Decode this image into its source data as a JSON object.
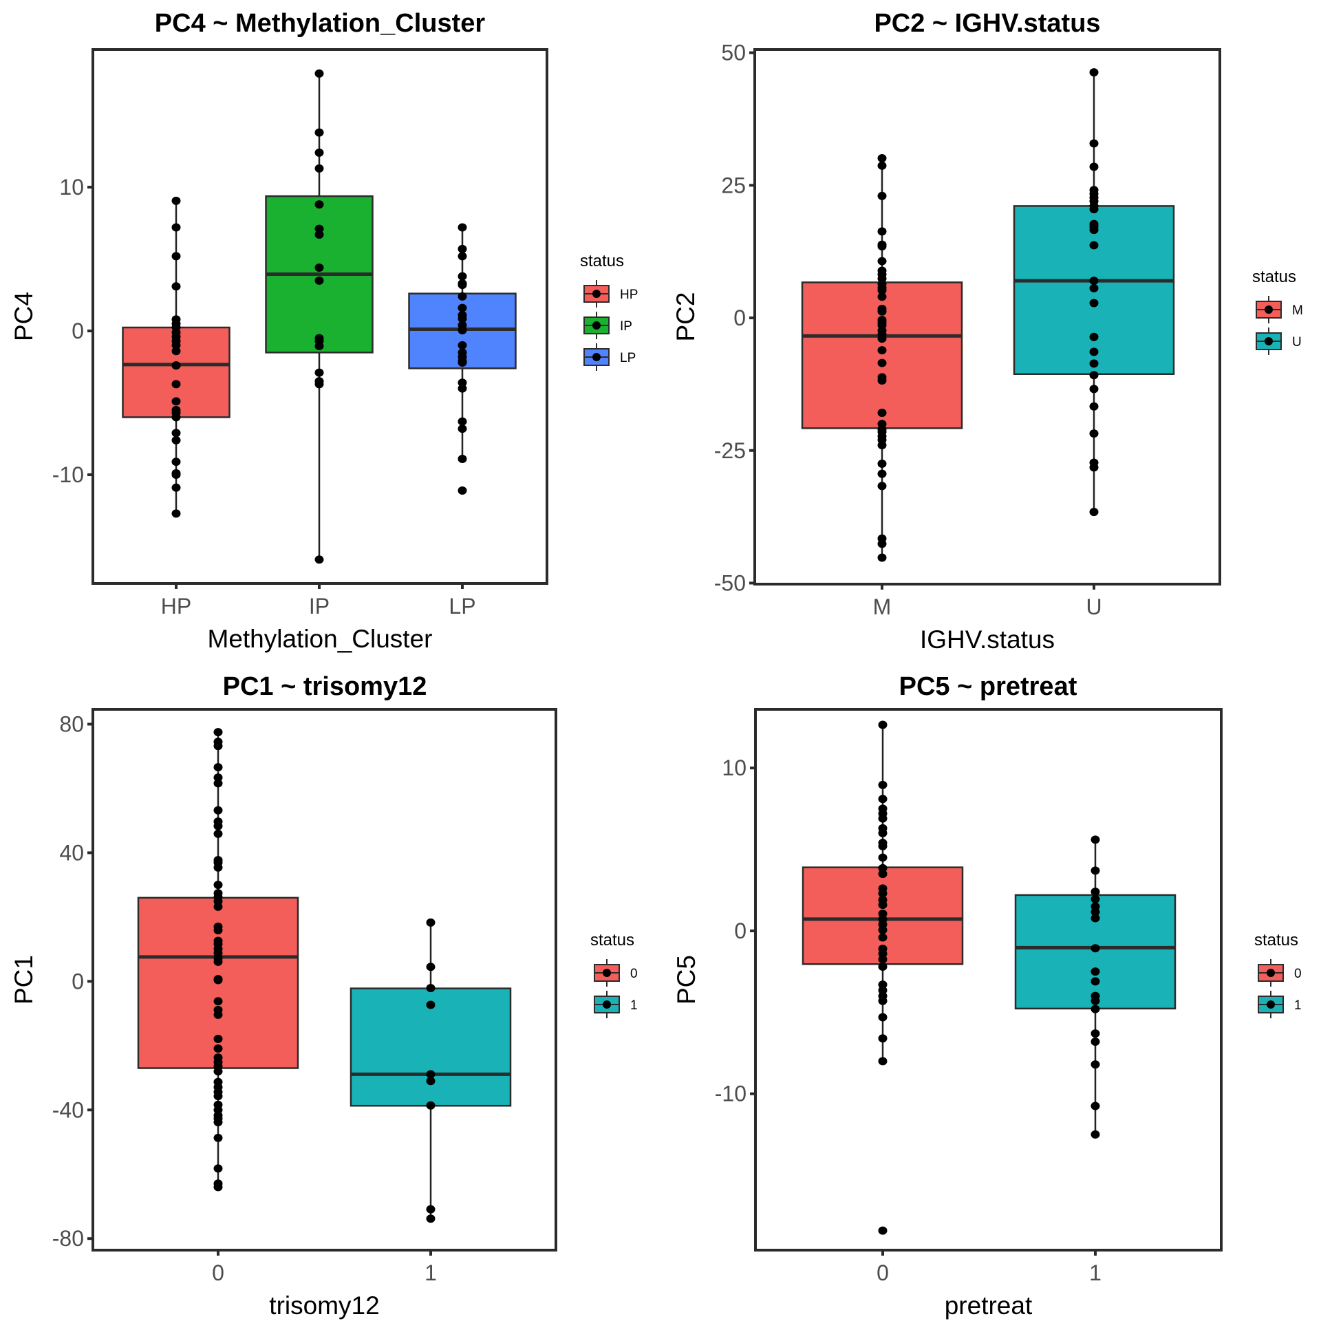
{
  "chart_data": [
    {
      "type": "box",
      "title": "PC4 ~ Methylation_Cluster",
      "xlabel": "Methylation_Cluster",
      "ylabel": "PC4",
      "ylim": [
        -17.56,
        19.57
      ],
      "yticks": [
        -10,
        0,
        10
      ],
      "ytick_labels": [
        "-10",
        "0",
        "10"
      ],
      "categories": [
        "HP",
        "IP",
        "LP"
      ],
      "legend": {
        "title": "status",
        "position": "right",
        "entries": [
          "HP",
          "IP",
          "LP"
        ]
      },
      "grid": false,
      "groups": [
        {
          "name": "HP",
          "color": "#F35E5A",
          "q1": -6.0,
          "median": -2.34,
          "q3": 0.24,
          "whisker_low": -12.7,
          "whisker_high": 9.05,
          "points": [
            9.05,
            7.2,
            5.2,
            3.1,
            0.8,
            0.5,
            0.25,
            -0.1,
            -0.4,
            -0.7,
            -1.0,
            -1.4,
            -2.4,
            -2.4,
            -3.7,
            -4.9,
            -5.5,
            -5.7,
            -6.0,
            -7.1,
            -7.6,
            -9.1,
            -9.9,
            -10.0,
            -10.9,
            -12.7
          ]
        },
        {
          "name": "IP",
          "color": "#19B12F",
          "q1": -1.5,
          "median": 3.95,
          "q3": 9.37,
          "whisker_low": -15.9,
          "whisker_high": 17.9,
          "points": [
            17.9,
            13.8,
            12.4,
            11.3,
            8.8,
            7.1,
            6.7,
            4.4,
            3.5,
            -0.5,
            -0.7,
            -1.05,
            -2.9,
            -3.5,
            -3.7,
            -15.9
          ]
        },
        {
          "name": "LP",
          "color": "#5083FE",
          "q1": -2.6,
          "median": 0.12,
          "q3": 2.6,
          "whisker_low": -8.9,
          "whisker_high": 7.2,
          "points": [
            7.2,
            5.7,
            5.2,
            3.8,
            3.3,
            3.2,
            2.4,
            1.6,
            1.1,
            0.85,
            0.4,
            0.05,
            -1.0,
            -1.5,
            -1.8,
            -2.1,
            -2.2,
            -3.6,
            -4.0,
            -6.3,
            -6.8,
            -8.9,
            -11.1
          ]
        }
      ]
    },
    {
      "type": "box",
      "title": "PC2 ~ IGHV.status",
      "xlabel": "IGHV.status",
      "ylabel": "PC2",
      "ylim": [
        -50.2,
        50.6
      ],
      "yticks": [
        -50,
        -25,
        0,
        25,
        50
      ],
      "ytick_labels": [
        "-50",
        "-25",
        "0",
        "25",
        "50"
      ],
      "categories": [
        "M",
        "U"
      ],
      "legend": {
        "title": "status",
        "position": "right",
        "entries": [
          "M",
          "U"
        ]
      },
      "grid": false,
      "groups": [
        {
          "name": "M",
          "color": "#F35E5A",
          "q1": -20.8,
          "median": -3.4,
          "q3": 6.7,
          "whisker_low": -45.2,
          "whisker_high": 30.1,
          "points": [
            30.1,
            28.7,
            23.0,
            16.3,
            13.8,
            13.5,
            10.7,
            8.9,
            8.2,
            7.4,
            6.4,
            5.7,
            5.2,
            4.0,
            1.7,
            1.2,
            -0.4,
            -0.9,
            -1.4,
            -2.4,
            -3.1,
            -3.9,
            -6.1,
            -8.5,
            -11.2,
            -11.8,
            -17.9,
            -20.0,
            -21.0,
            -21.5,
            -22.3,
            -23.0,
            -24.0,
            -27.5,
            -29.4,
            -31.7,
            -41.6,
            -42.6,
            -45.2
          ]
        },
        {
          "name": "U",
          "color": "#19B3B7",
          "q1": -10.6,
          "median": 7.0,
          "q3": 21.1,
          "whisker_low": -36.6,
          "whisker_high": 46.3,
          "points": [
            46.3,
            32.9,
            28.5,
            24.1,
            23.4,
            22.7,
            22.0,
            21.1,
            20.5,
            17.7,
            17.2,
            16.6,
            13.7,
            7.0,
            5.6,
            2.8,
            -3.6,
            -6.4,
            -8.6,
            -10.8,
            -13.4,
            -16.7,
            -21.8,
            -27.3,
            -28.2,
            -36.6
          ]
        }
      ]
    },
    {
      "type": "box",
      "title": "PC1 ~ trisomy12",
      "xlabel": "trisomy12",
      "ylabel": "PC1",
      "ylim": [
        -83.6,
        84.6
      ],
      "yticks": [
        -80,
        -40,
        0,
        40,
        80
      ],
      "ytick_labels": [
        "-80",
        "-40",
        "0",
        "40",
        "80"
      ],
      "categories": [
        "0",
        "1"
      ],
      "legend": {
        "title": "status",
        "position": "right",
        "entries": [
          "0",
          "1"
        ]
      },
      "grid": false,
      "groups": [
        {
          "name": "0",
          "color": "#F35E5A",
          "q1": -27.0,
          "median": 7.6,
          "q3": 26.0,
          "whisker_low": -64.0,
          "whisker_high": 77.5,
          "points": [
            77.5,
            74.5,
            73.2,
            66.6,
            63.4,
            61.6,
            53.2,
            49.7,
            48.3,
            45.9,
            37.7,
            36.9,
            35.4,
            30.0,
            27.4,
            26.2,
            24.9,
            23.2,
            17.0,
            15.9,
            12.6,
            11.6,
            10.1,
            8.8,
            7.2,
            6.1,
            0.7,
            0.4,
            -6.2,
            -8.9,
            -10.4,
            -17.9,
            -20.9,
            -23.7,
            -25.1,
            -26.4,
            -28.0,
            -31.3,
            -32.9,
            -34.4,
            -35.7,
            -38.4,
            -40.0,
            -41.7,
            -42.7,
            -43.8,
            -48.7,
            -58.2,
            -62.9,
            -64.0
          ]
        },
        {
          "name": "1",
          "color": "#19B3B7",
          "q1": -38.7,
          "median": -28.9,
          "q3": -2.2,
          "whisker_low": -73.8,
          "whisker_high": 18.3,
          "points": [
            18.3,
            4.5,
            -2.1,
            -7.3,
            -28.9,
            -31.0,
            -38.6,
            -70.9,
            -73.8
          ]
        }
      ]
    },
    {
      "type": "box",
      "title": "PC5 ~ pretreat",
      "xlabel": "pretreat",
      "ylabel": "PC5",
      "ylim": [
        -19.6,
        13.6
      ],
      "yticks": [
        -10,
        0,
        10
      ],
      "ytick_labels": [
        "-10",
        "0",
        "10"
      ],
      "categories": [
        "0",
        "1"
      ],
      "legend": {
        "title": "status",
        "position": "right",
        "entries": [
          "0",
          "1"
        ]
      },
      "grid": false,
      "groups": [
        {
          "name": "0",
          "color": "#F35E5A",
          "q1": -2.04,
          "median": 0.72,
          "q3": 3.9,
          "whisker_low": -8.0,
          "whisker_high": 12.65,
          "points": [
            12.65,
            8.96,
            8.1,
            7.5,
            7.2,
            6.9,
            6.3,
            6.0,
            5.4,
            5.2,
            4.5,
            3.85,
            3.5,
            2.6,
            2.3,
            1.9,
            1.6,
            1.05,
            0.7,
            0.4,
            0.05,
            -0.4,
            -1.1,
            -1.4,
            -1.75,
            -2.2,
            -3.3,
            -3.65,
            -4.0,
            -4.3,
            -5.3,
            -6.6,
            -8.0,
            -18.4
          ]
        },
        {
          "name": "1",
          "color": "#19B3B7",
          "q1": -4.77,
          "median": -1.03,
          "q3": 2.2,
          "whisker_low": -12.5,
          "whisker_high": 5.6,
          "points": [
            5.6,
            3.7,
            2.4,
            1.95,
            1.5,
            1.16,
            0.78,
            -1.07,
            -2.5,
            -3.1,
            -4.0,
            -4.3,
            -4.8,
            -6.3,
            -6.8,
            -8.2,
            -10.75,
            -12.5
          ]
        }
      ]
    }
  ]
}
